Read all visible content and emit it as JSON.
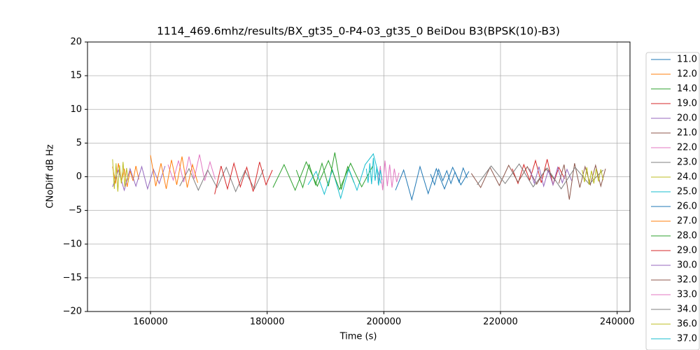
{
  "chart_data": {
    "type": "line",
    "title": "1114_469.6mhz/results/BX_gt35_0-P4-03_gt35_0 BeiDou B3(BPSK(10)-B3)",
    "x_label": "Time (s)",
    "y_label": "CNoDiff dB Hz",
    "xlim": [
      149200,
      242200
    ],
    "ylim": [
      -20,
      20
    ],
    "xticks": [
      160000,
      180000,
      200000,
      220000,
      240000
    ],
    "yticks": [
      20,
      15,
      10,
      5,
      0,
      {
        "value": -5,
        "label": "−5"
      },
      {
        "value": -10,
        "label": "−10"
      },
      {
        "value": -15,
        "label": "−15"
      },
      {
        "value": -20,
        "label": "−20"
      }
    ],
    "grid": true,
    "series": [
      {
        "name": "11.0",
        "color": "#1f77b4",
        "x": [
          208000,
          208700,
          209400,
          210100,
          210800,
          211500,
          212200,
          212900,
          213600,
          214300
        ],
        "values": [
          0.4,
          -1.2,
          1.1,
          -0.6,
          0.9,
          -1.0,
          0.7,
          -0.8,
          1.3,
          -0.2
        ]
      },
      {
        "name": "12.0",
        "color": "#ff7f0e",
        "x": [
          153500,
          154000,
          154500,
          155000,
          155500,
          156000,
          156500,
          157000,
          157500,
          158000
        ],
        "values": [
          1.5,
          -1.0,
          2.0,
          -0.8,
          1.2,
          -1.5,
          0.9,
          -0.6,
          1.6,
          -0.4
        ]
      },
      {
        "name": "14.0",
        "color": "#2ca02c",
        "x": [
          185000,
          186100,
          187200,
          188300,
          189400,
          190500,
          191600,
          192700,
          193800,
          194900
        ],
        "values": [
          1.0,
          -1.6,
          1.8,
          -1.2,
          2.0,
          -1.4,
          3.6,
          -1.9,
          1.5,
          -0.9
        ]
      },
      {
        "name": "19.0",
        "color": "#d62728",
        "x": [
          222000,
          223000,
          224000,
          225000,
          226000,
          227000,
          228000,
          229000,
          230000,
          231000
        ],
        "values": [
          1.2,
          -1.0,
          1.8,
          -0.5,
          2.4,
          -0.9,
          2.6,
          -1.2,
          1.4,
          -0.3
        ]
      },
      {
        "name": "20.0",
        "color": "#9467bd",
        "x": [
          153500,
          154500,
          155500,
          156500,
          157500,
          158500,
          159500,
          160500,
          161500,
          162500
        ],
        "values": [
          -1.5,
          1.0,
          -2.0,
          1.2,
          -1.4,
          1.5,
          -1.8,
          1.1,
          -1.0,
          1.6
        ]
      },
      {
        "name": "21.0",
        "color": "#8c564b",
        "x": [
          215000,
          216600,
          218200,
          219800,
          221400,
          223000,
          224600,
          226200,
          227800,
          229400
        ],
        "values": [
          0.5,
          -1.6,
          1.4,
          -1.3,
          1.7,
          -0.8,
          1.5,
          -1.1,
          1.2,
          -0.6
        ]
      },
      {
        "name": "22.0",
        "color": "#e377c2",
        "x": [
          163000,
          163900,
          164800,
          165700,
          166600,
          167500,
          168400,
          169300,
          170200,
          171100
        ],
        "values": [
          1.8,
          -0.5,
          2.4,
          -0.8,
          3.0,
          -0.3,
          3.3,
          -0.6,
          2.2,
          -0.4
        ]
      },
      {
        "name": "23.0",
        "color": "#7f7f7f",
        "x": [
          165000,
          166600,
          168200,
          169800,
          171400,
          173000,
          174600,
          176200,
          177800,
          179400
        ],
        "values": [
          -1.4,
          1.2,
          -2.0,
          1.0,
          -1.6,
          1.4,
          -2.2,
          0.9,
          -1.8,
          1.1
        ]
      },
      {
        "name": "24.0",
        "color": "#bcbd22",
        "x": [
          153500,
          153800,
          154100,
          154400,
          154700,
          155000,
          155300,
          155600,
          155900,
          156200
        ],
        "values": [
          2.6,
          -1.8,
          2.0,
          -2.2,
          1.7,
          -1.0,
          2.2,
          -1.5,
          1.3,
          -0.8
        ]
      },
      {
        "name": "25.0",
        "color": "#17becf",
        "x": [
          187000,
          188400,
          189800,
          191200,
          192600,
          194000,
          195400,
          196800,
          198200,
          199500
        ],
        "values": [
          -1.2,
          0.8,
          -2.6,
          1.0,
          -3.2,
          1.2,
          -2.0,
          1.8,
          3.4,
          -1.0
        ]
      },
      {
        "name": "26.0",
        "color": "#1f77b4",
        "x": [
          202000,
          203400,
          204800,
          206200,
          207600,
          209000,
          210400,
          211800,
          213200,
          214600
        ],
        "values": [
          -2.0,
          1.0,
          -3.4,
          1.5,
          -2.5,
          1.2,
          -1.8,
          1.4,
          -1.2,
          0.8
        ]
      },
      {
        "name": "27.0",
        "color": "#ff7f0e",
        "x": [
          160000,
          160900,
          161800,
          162700,
          163600,
          164500,
          165400,
          166300,
          167200,
          168100
        ],
        "values": [
          3.2,
          -1.4,
          2.0,
          -1.8,
          2.5,
          -1.2,
          3.0,
          -1.6,
          1.8,
          -0.9
        ]
      },
      {
        "name": "28.0",
        "color": "#2ca02c",
        "x": [
          181000,
          182900,
          184800,
          186700,
          188600,
          190500,
          192400,
          194300,
          196200,
          198100
        ],
        "values": [
          -1.6,
          1.8,
          -2.0,
          2.2,
          -1.4,
          2.4,
          -1.9,
          2.0,
          -1.5,
          1.6
        ]
      },
      {
        "name": "29.0",
        "color": "#d62728",
        "x": [
          171000,
          172100,
          173200,
          174300,
          175400,
          176500,
          177600,
          178700,
          179800,
          180900
        ],
        "values": [
          -2.6,
          1.6,
          -1.8,
          2.0,
          -1.5,
          1.4,
          -2.2,
          2.2,
          -1.2,
          1.0
        ]
      },
      {
        "name": "30.0",
        "color": "#9467bd",
        "x": [
          225000,
          225800,
          226600,
          227400,
          228200,
          229000,
          229800,
          230600,
          231400,
          232200
        ],
        "values": [
          1.2,
          -1.0,
          1.5,
          -1.4,
          1.0,
          -1.2,
          1.4,
          -0.9,
          1.1,
          -0.6
        ]
      },
      {
        "name": "32.0",
        "color": "#8c564b",
        "x": [
          230000,
          230900,
          231800,
          232700,
          233600,
          234500,
          235400,
          236300,
          237200,
          238000
        ],
        "values": [
          -1.0,
          1.8,
          -3.4,
          2.0,
          -1.6,
          1.5,
          -1.2,
          1.7,
          -1.4,
          1.2
        ]
      },
      {
        "name": "33.0",
        "color": "#e377c2",
        "x": [
          199000,
          199400,
          199800,
          200200,
          200600,
          201000,
          201400,
          201800,
          202200,
          202600
        ],
        "values": [
          -1.0,
          1.6,
          -2.0,
          2.4,
          -1.4,
          1.8,
          -1.6,
          1.2,
          -0.8,
          0.6
        ]
      },
      {
        "name": "34.0",
        "color": "#7f7f7f",
        "x": [
          216000,
          218400,
          220800,
          223200,
          225600,
          228000,
          230400,
          232800,
          235200,
          237600
        ],
        "values": [
          -1.2,
          1.6,
          -1.0,
          1.9,
          -1.5,
          1.3,
          -1.8,
          1.4,
          -1.1,
          1.0
        ]
      },
      {
        "name": "36.0",
        "color": "#bcbd22",
        "x": [
          234000,
          234400,
          234800,
          235200,
          235600,
          236000,
          236400,
          236800,
          237200,
          237600
        ],
        "values": [
          1.0,
          -0.8,
          1.4,
          -1.2,
          0.9,
          -1.0,
          1.2,
          -0.7,
          1.1,
          -0.5
        ]
      },
      {
        "name": "37.0",
        "color": "#17becf",
        "x": [
          197000,
          197300,
          197600,
          197900,
          198200,
          198500,
          198800,
          199100,
          199400,
          199700
        ],
        "values": [
          1.2,
          -0.9,
          2.0,
          -1.1,
          2.8,
          -0.6,
          1.5,
          -1.3,
          1.0,
          -0.5
        ]
      }
    ]
  }
}
